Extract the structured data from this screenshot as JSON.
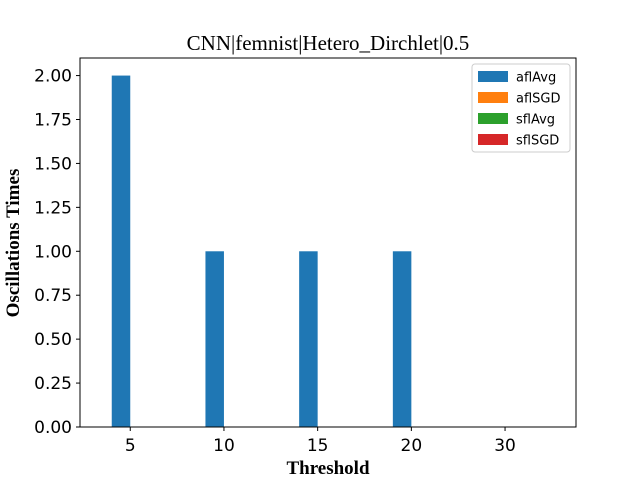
{
  "chart_data": {
    "type": "bar",
    "title": "CNN|femnist|Hetero_Dirchlet|0.5",
    "xlabel": "Threshold",
    "ylabel": "Oscillations Times",
    "categories": [
      "5",
      "10",
      "15",
      "20",
      "30"
    ],
    "yticks": [
      "0.00",
      "0.25",
      "0.50",
      "0.75",
      "1.00",
      "1.25",
      "1.50",
      "1.75",
      "2.00"
    ],
    "ylim": [
      0,
      2.1
    ],
    "grid": false,
    "legend_position": "top-right",
    "series": [
      {
        "name": "aflAvg",
        "color": "#1f77b4",
        "values": [
          2,
          1,
          1,
          1,
          0
        ]
      },
      {
        "name": "aflSGD",
        "color": "#ff7f0e",
        "values": [
          0,
          0,
          0,
          0,
          0
        ]
      },
      {
        "name": "sflAvg",
        "color": "#2ca02c",
        "values": [
          0,
          0,
          0,
          0,
          0
        ]
      },
      {
        "name": "sflSGD",
        "color": "#d62728",
        "values": [
          0,
          0,
          0,
          0,
          0
        ]
      }
    ]
  }
}
